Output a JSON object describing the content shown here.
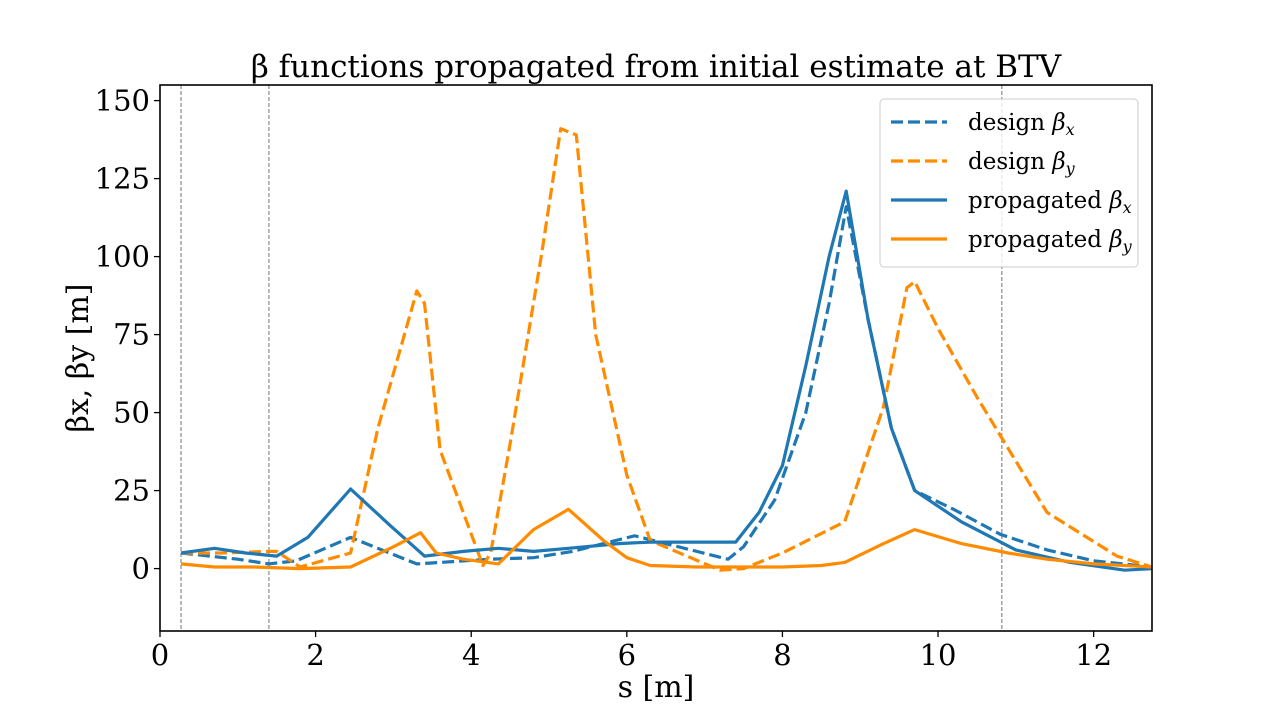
{
  "chart_data": {
    "type": "line",
    "title": "β functions propagated from initial estimate at BTV",
    "xlabel": "s [m]",
    "ylabel": "βx, βy [m]",
    "xlim": [
      0,
      12.75
    ],
    "ylim": [
      -20,
      155
    ],
    "xticks": [
      0,
      2,
      4,
      6,
      8,
      10,
      12
    ],
    "yticks": [
      0,
      25,
      50,
      75,
      100,
      125,
      150
    ],
    "grid": false,
    "legend_position": "upper-right",
    "vertical_markers": [
      0.27,
      1.4,
      10.82
    ],
    "series": [
      {
        "name": "design βx",
        "label_main": "design ",
        "label_sym": "β",
        "label_sub": "x",
        "style": "dashed",
        "color": "#1f77b4",
        "x": [
          0.27,
          1.0,
          1.4,
          1.75,
          2.45,
          3.3,
          4.25,
          4.8,
          5.3,
          6.1,
          7.3,
          7.5,
          7.9,
          8.3,
          8.6,
          8.82,
          9.1,
          9.4,
          9.7,
          10.2,
          10.8,
          11.4,
          12.0,
          12.75
        ],
        "y": [
          5,
          3,
          1.5,
          2.5,
          10,
          1.5,
          3,
          3.5,
          5.5,
          10.5,
          3,
          7,
          22,
          50,
          85,
          116,
          80,
          45,
          25,
          19,
          11,
          6,
          2.5,
          0.5
        ]
      },
      {
        "name": "design βy",
        "label_main": "design ",
        "label_sym": "β",
        "label_sub": "y",
        "style": "dashed",
        "color": "#ff8c00",
        "x": [
          0.27,
          0.8,
          1.4,
          1.5,
          1.8,
          2.45,
          2.8,
          3.3,
          3.4,
          3.6,
          4.15,
          4.25,
          4.5,
          4.9,
          5.15,
          5.35,
          5.6,
          6.0,
          6.3,
          7.2,
          7.5,
          8.0,
          8.8,
          9.3,
          9.6,
          9.7,
          10.0,
          10.5,
          11.4,
          12.3,
          12.75
        ],
        "y": [
          5,
          5,
          5.5,
          5.5,
          0.5,
          5,
          45,
          89,
          85,
          38,
          1,
          5,
          40,
          100,
          141,
          139,
          75,
          30,
          9,
          -0.5,
          0,
          5,
          15,
          52,
          90,
          92,
          77,
          55,
          18,
          4,
          0.5
        ]
      },
      {
        "name": "propagated βx",
        "label_main": "propagated ",
        "label_sym": "β",
        "label_sub": "x",
        "style": "solid",
        "color": "#1f77b4",
        "x": [
          0.27,
          0.7,
          1.1,
          1.5,
          1.9,
          2.45,
          2.95,
          3.4,
          3.9,
          4.35,
          4.8,
          5.25,
          5.9,
          6.3,
          7.4,
          7.7,
          8.0,
          8.3,
          8.6,
          8.82,
          9.1,
          9.4,
          9.7,
          10.3,
          11.0,
          11.7,
          12.4,
          12.75
        ],
        "y": [
          5,
          6.5,
          5,
          4,
          10,
          25.5,
          14,
          4,
          5.5,
          6.5,
          5.5,
          6.5,
          8,
          8.5,
          8.5,
          18,
          33,
          65,
          100,
          121,
          80,
          45,
          25,
          15,
          6,
          2,
          -0.5,
          0
        ]
      },
      {
        "name": "propagated βy",
        "label_main": "propagated ",
        "label_sym": "β",
        "label_sub": "y",
        "style": "solid",
        "color": "#ff8c00",
        "x": [
          0.27,
          0.7,
          1.2,
          1.8,
          2.45,
          3.0,
          3.35,
          3.55,
          3.9,
          4.35,
          4.8,
          5.25,
          5.7,
          6.0,
          6.3,
          6.9,
          7.5,
          8.0,
          8.5,
          8.8,
          9.3,
          9.7,
          10.3,
          10.9,
          11.4,
          12.0,
          12.75
        ],
        "y": [
          1.5,
          0.5,
          0.5,
          0,
          0.5,
          7,
          11.5,
          5,
          3,
          1.5,
          12.5,
          19,
          9,
          3.5,
          1,
          0.5,
          0.5,
          0.5,
          1,
          2,
          8,
          12.5,
          8,
          5,
          3,
          1.5,
          0.5
        ]
      }
    ]
  }
}
